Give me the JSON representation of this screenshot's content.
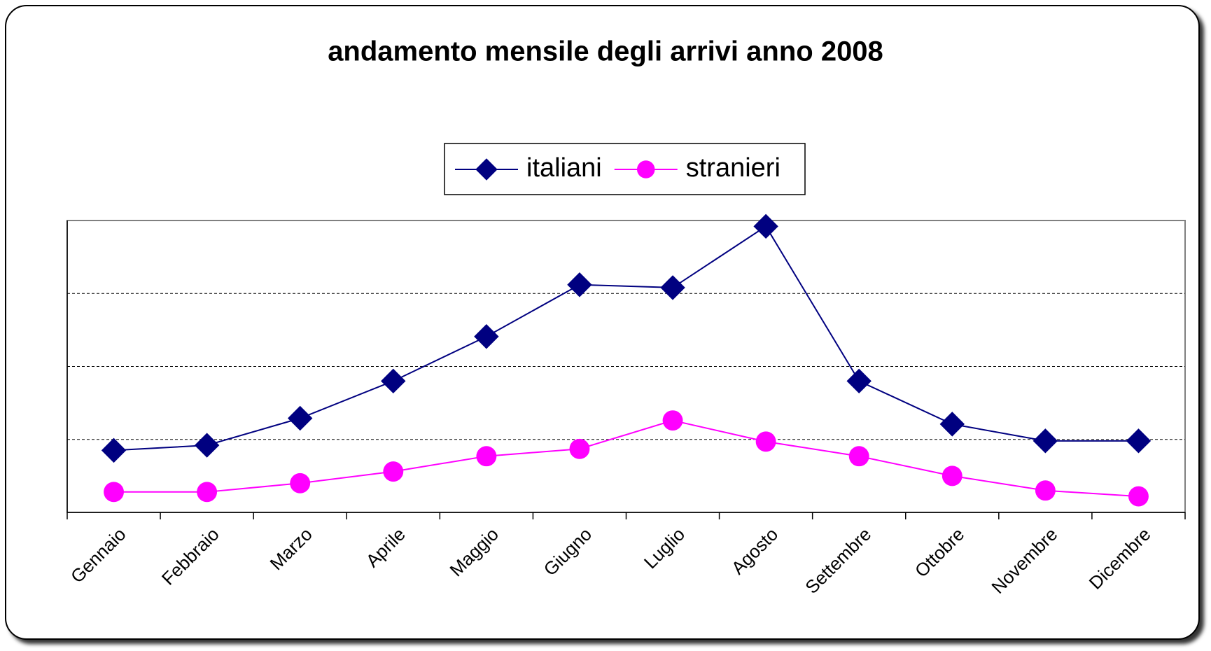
{
  "chart_data": {
    "type": "line",
    "title": "andamento mensile degli arrivi anno 2008",
    "categories": [
      "Gennaio",
      "Febbraio",
      "Marzo",
      "Aprile",
      "Maggio",
      "Giugno",
      "Luglio",
      "Agosto",
      "Settembre",
      "Ottobre",
      "Novembre",
      "Dicembre"
    ],
    "series": [
      {
        "name": "italiani",
        "color": "#000080",
        "marker": "diamond",
        "values": [
          0.85,
          0.92,
          1.29,
          1.8,
          2.41,
          3.12,
          3.08,
          3.92,
          1.8,
          1.21,
          0.98,
          0.98
        ]
      },
      {
        "name": "stranieri",
        "color": "#ff00ff",
        "marker": "circle",
        "values": [
          0.28,
          0.28,
          0.4,
          0.56,
          0.77,
          0.87,
          1.26,
          0.97,
          0.77,
          0.5,
          0.3,
          0.22
        ]
      }
    ],
    "ylim": [
      0,
      4
    ],
    "yticks": [
      1,
      2,
      3
    ],
    "grid": true,
    "legend": "top"
  }
}
